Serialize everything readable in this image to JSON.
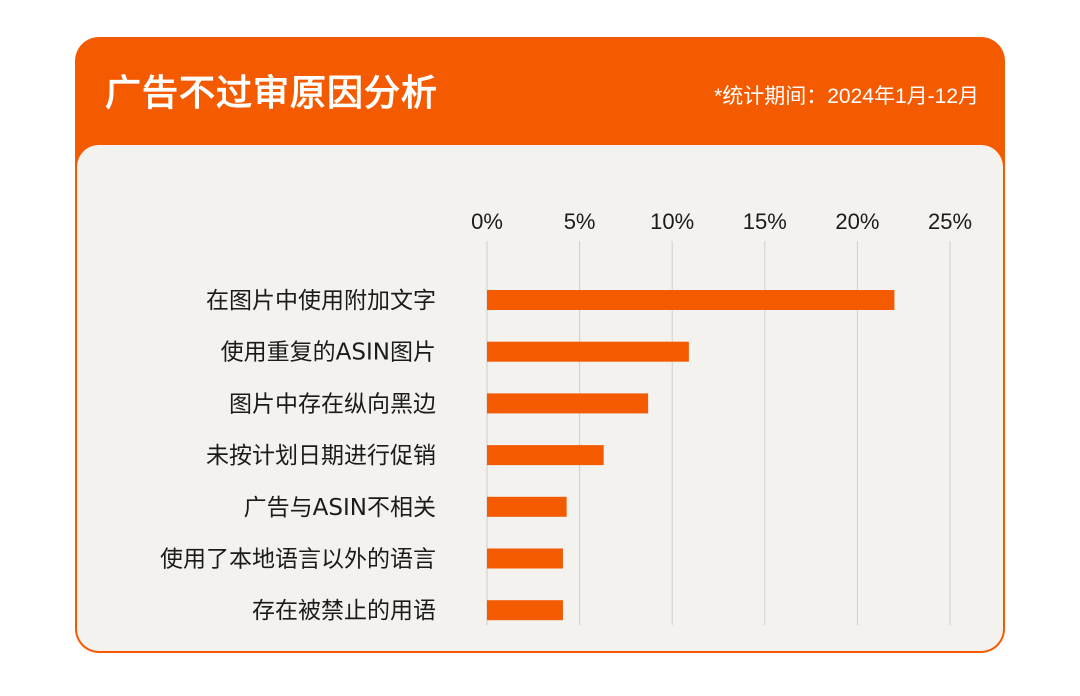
{
  "header": {
    "title": "广告不过审原因分析",
    "period": "*统计期间：2024年1月-12月"
  },
  "colors": {
    "accent": "#f45b00",
    "panel": "#f4f2ef",
    "bar": "#f45b00",
    "grid": "#cfcfcf",
    "text": "#1b1b1b"
  },
  "chart_data": {
    "type": "bar",
    "orientation": "horizontal",
    "title": "广告不过审原因分析",
    "categories": [
      "在图片中使用附加文字",
      "使用重复的ASIN图片",
      "图片中存在纵向黑边",
      "未按计划日期进行促销",
      "广告与ASIN不相关",
      "使用了本地语言以外的语言",
      "存在被禁止的用语"
    ],
    "values": [
      22.0,
      10.9,
      8.7,
      6.3,
      4.3,
      4.1,
      4.1
    ],
    "x_ticks": [
      "0%",
      "5%",
      "10%",
      "15%",
      "20%",
      "25%"
    ],
    "xlim": [
      0,
      25
    ],
    "unit": "%",
    "grid": true,
    "axis_position": "top"
  }
}
